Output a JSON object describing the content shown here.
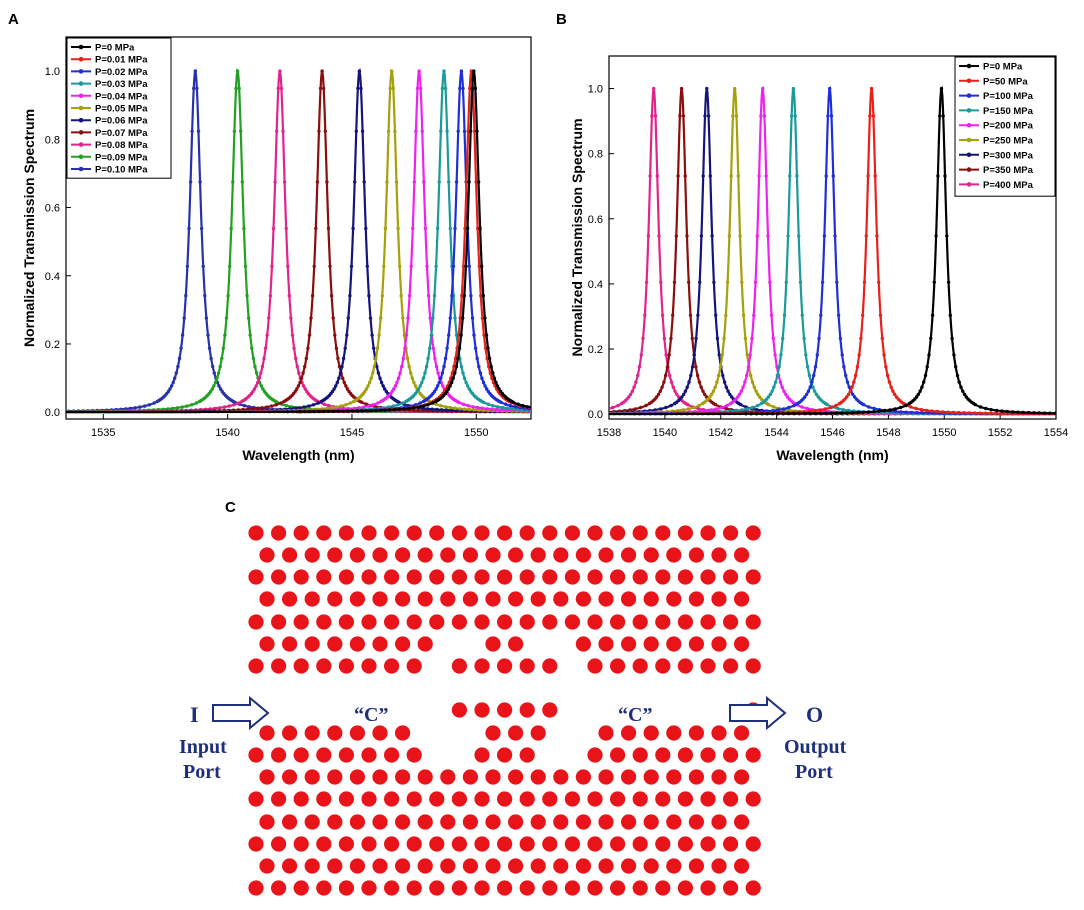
{
  "panel_labels": {
    "a": "A",
    "b": "B",
    "c": "C"
  },
  "chart_data": [
    {
      "type": "line",
      "panel": "A",
      "title": "",
      "xlabel": "Wavelength (nm)",
      "ylabel": "Normalized Transmission Spectrum",
      "xlim": [
        1533.5,
        1552.2
      ],
      "ylim": [
        -0.02,
        1.1
      ],
      "xticks": [
        1535,
        1540,
        1545,
        1550
      ],
      "yticks": [
        0.0,
        0.2,
        0.4,
        0.6,
        0.8,
        1.0
      ],
      "xtick_labels": [
        "1535",
        "1540",
        "1545",
        "1550"
      ],
      "ytick_labels": [
        "0.0",
        "0.2",
        "0.4",
        "0.6",
        "0.8",
        "1.0"
      ],
      "grid": false,
      "legend_position": "top-left",
      "linewidth_nm": 0.55,
      "series": [
        {
          "name": "P=0 MPa",
          "peak": 1549.9,
          "color": "#000000"
        },
        {
          "name": "P=0.01 MPa",
          "peak": 1549.8,
          "color": "#e8201a"
        },
        {
          "name": "P=0.02 MPa",
          "peak": 1549.4,
          "color": "#1f2fd6"
        },
        {
          "name": "P=0.03 MPa",
          "peak": 1548.7,
          "color": "#1a9a9a"
        },
        {
          "name": "P=0.04 MPa",
          "peak": 1547.7,
          "color": "#ee22ee"
        },
        {
          "name": "P=0.05 MPa",
          "peak": 1546.6,
          "color": "#a6a00a"
        },
        {
          "name": "P=0.06 MPa",
          "peak": 1545.3,
          "color": "#14147a"
        },
        {
          "name": "P=0.07 MPa",
          "peak": 1543.8,
          "color": "#8a0e0e"
        },
        {
          "name": "P=0.08 MPa",
          "peak": 1542.1,
          "color": "#e0248c"
        },
        {
          "name": "P=0.09 MPa",
          "peak": 1540.4,
          "color": "#22a022"
        },
        {
          "name": "P=0.10 MPa",
          "peak": 1538.7,
          "color": "#2632a8"
        }
      ]
    },
    {
      "type": "line",
      "panel": "B",
      "title": "",
      "xlabel": "Wavelength (nm)",
      "ylabel": "Normalized Transmission Spectrum",
      "xlim": [
        1538,
        1554
      ],
      "ylim": [
        -0.015,
        1.1
      ],
      "xticks": [
        1538,
        1540,
        1542,
        1544,
        1546,
        1548,
        1550,
        1552,
        1554
      ],
      "yticks": [
        0.0,
        0.2,
        0.4,
        0.6,
        0.8,
        1.0
      ],
      "xtick_labels": [
        "1538",
        "1540",
        "1542",
        "1544",
        "1546",
        "1548",
        "1550",
        "1552",
        "1554"
      ],
      "ytick_labels": [
        "0.0",
        "0.2",
        "0.4",
        "0.6",
        "0.8",
        "1.0"
      ],
      "grid": false,
      "legend_position": "top-right",
      "linewidth_nm": 0.42,
      "series": [
        {
          "name": "P=0 MPa",
          "peak": 1549.9,
          "color": "#000000"
        },
        {
          "name": "P=50 MPa",
          "peak": 1547.4,
          "color": "#e8201a"
        },
        {
          "name": "P=100 MPa",
          "peak": 1545.9,
          "color": "#1f2fd6"
        },
        {
          "name": "P=150 MPa",
          "peak": 1544.6,
          "color": "#1a9a9a"
        },
        {
          "name": "P=200 MPa",
          "peak": 1543.5,
          "color": "#ee22ee"
        },
        {
          "name": "P=250 MPa",
          "peak": 1542.5,
          "color": "#a6a00a"
        },
        {
          "name": "P=300 MPa",
          "peak": 1541.5,
          "color": "#14147a"
        },
        {
          "name": "P=350 MPa",
          "peak": 1540.6,
          "color": "#8a0e0e"
        },
        {
          "name": "P=400 MPa",
          "peak": 1539.6,
          "color": "#e0248c"
        }
      ]
    }
  ],
  "diagram": {
    "input_symbol": "I",
    "input_label_line1": "Input",
    "input_label_line2": "Port",
    "output_symbol": "O",
    "output_label_line1": "Output",
    "output_label_line2": "Port",
    "cavity_label_left": "“C”",
    "cavity_label_right": "“C”",
    "rod_color": "#e8141a",
    "text_color": "#1f2f7a"
  }
}
